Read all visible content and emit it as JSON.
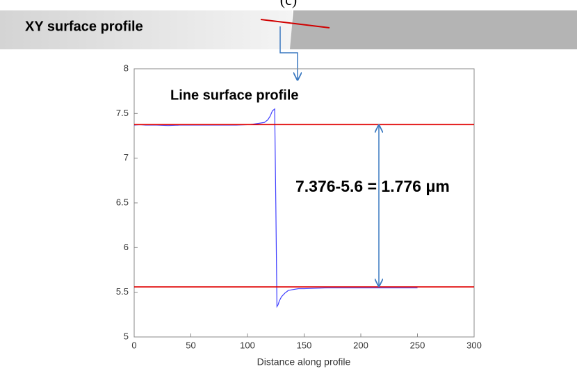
{
  "chart_data": {
    "type": "line",
    "panel_label": "(c)",
    "banner_label": "XY surface profile",
    "annotations": [
      "Line surface profile",
      "7.376-5.6 = 1.776 μm"
    ],
    "xlabel": "Distance along profile",
    "x": [
      0,
      5,
      10,
      20,
      30,
      40,
      50,
      60,
      70,
      80,
      90,
      100,
      105,
      110,
      115,
      118,
      120,
      122,
      124,
      125,
      126,
      127,
      128,
      130,
      133,
      136,
      140,
      145,
      150,
      160,
      170,
      180,
      190,
      200,
      210,
      220,
      230,
      240,
      250
    ],
    "series": [
      {
        "color": "#4040ff",
        "values": [
          7.37,
          7.375,
          7.37,
          7.37,
          7.365,
          7.37,
          7.37,
          7.37,
          7.37,
          7.37,
          7.37,
          7.375,
          7.38,
          7.39,
          7.4,
          7.43,
          7.47,
          7.53,
          7.55,
          6.5,
          5.34,
          5.36,
          5.4,
          5.45,
          5.49,
          5.52,
          5.53,
          5.54,
          5.54,
          5.545,
          5.55,
          5.55,
          5.55,
          5.55,
          5.55,
          5.55,
          5.55,
          5.55,
          5.55
        ]
      }
    ],
    "hlines": {
      "color": "#e00000",
      "values": [
        7.376,
        5.56
      ]
    },
    "xlim": [
      0,
      300
    ],
    "ylim": [
      5,
      8
    ],
    "xticks": [
      0,
      50,
      100,
      150,
      200,
      250,
      300
    ],
    "yticks": [
      5,
      5.5,
      6,
      6.5,
      7,
      7.5,
      8
    ]
  }
}
